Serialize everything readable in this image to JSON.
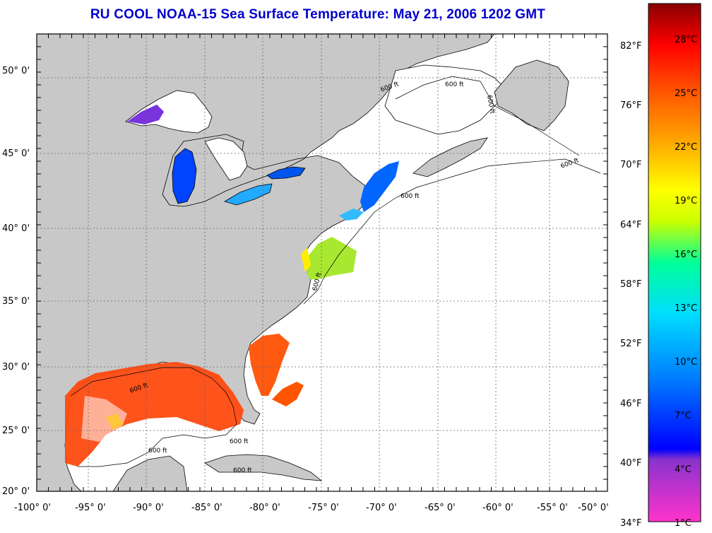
{
  "title": "RU COOL  NOAA-15  Sea Surface Temperature:  May 21, 2006 1202 GMT",
  "map": {
    "lat_labels": [
      "50° 0'",
      "45° 0'",
      "40° 0'",
      "35° 0'",
      "30° 0'",
      "25° 0'",
      "20° 0'"
    ],
    "lon_labels": [
      "-100° 0'",
      "-95° 0'",
      "-90° 0'",
      "-85° 0'",
      "-80° 0'",
      "-75° 0'",
      "-70° 0'",
      "-65° 0'",
      "-60° 0'",
      "-55° 0'",
      "-50° 0'"
    ],
    "contour_labels": [
      "600 ft",
      "600 ft",
      "600 ft",
      "600 ft",
      "600 ft",
      "600 ft",
      "600 ft",
      "600 ft",
      "600 ft",
      "600 ft"
    ],
    "colors": {
      "land": "#c8c8c8",
      "ocean": "#ffffff",
      "grid": "#000000"
    }
  },
  "colorbar": {
    "fahrenheit_labels": [
      "82°F",
      "76°F",
      "70°F",
      "64°F",
      "58°F",
      "52°F",
      "46°F",
      "40°F",
      "34°F"
    ],
    "celsius_labels": [
      "28°C",
      "25°C",
      "22°C",
      "19°C",
      "16°C",
      "13°C",
      "10°C",
      "7°C",
      "4°C",
      "1°C"
    ],
    "colors": [
      "#ff33cc",
      "#8833cc",
      "#0000ff",
      "#0077ff",
      "#00ddff",
      "#00ff99",
      "#ccff00",
      "#ffff00",
      "#ffaa00",
      "#ff5500",
      "#ff0000",
      "#cc0000",
      "#880000"
    ]
  }
}
